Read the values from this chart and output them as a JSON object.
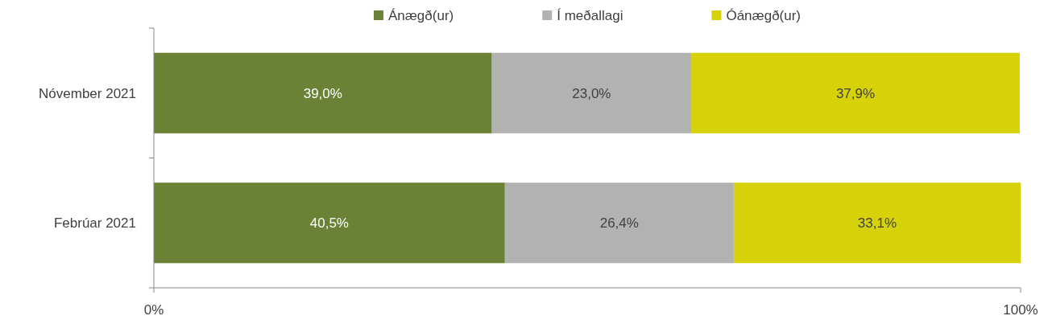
{
  "chart_data": {
    "type": "bar",
    "orientation": "horizontal",
    "stacked": true,
    "categories": [
      "Nóvember 2021",
      "Febrúar 2021"
    ],
    "series": [
      {
        "name": "Ánægð(ur)",
        "color": "#6a8136",
        "values": [
          39.0,
          40.5
        ],
        "value_labels": [
          "39,0%",
          "40,5%"
        ]
      },
      {
        "name": "Í meðallagi",
        "color": "#b2b2b2",
        "values": [
          23.0,
          26.4
        ],
        "value_labels": [
          "23,0%",
          "26,4%"
        ]
      },
      {
        "name": "Óánægð(ur)",
        "color": "#d7d10a",
        "values": [
          37.9,
          33.1
        ],
        "value_labels": [
          "37,9%",
          "33,1%"
        ]
      }
    ],
    "xlim": [
      0,
      100
    ],
    "xticks": [
      {
        "value": 0,
        "label": "0%"
      },
      {
        "value": 100,
        "label": "100%"
      }
    ],
    "grid": false,
    "legend": "top"
  }
}
